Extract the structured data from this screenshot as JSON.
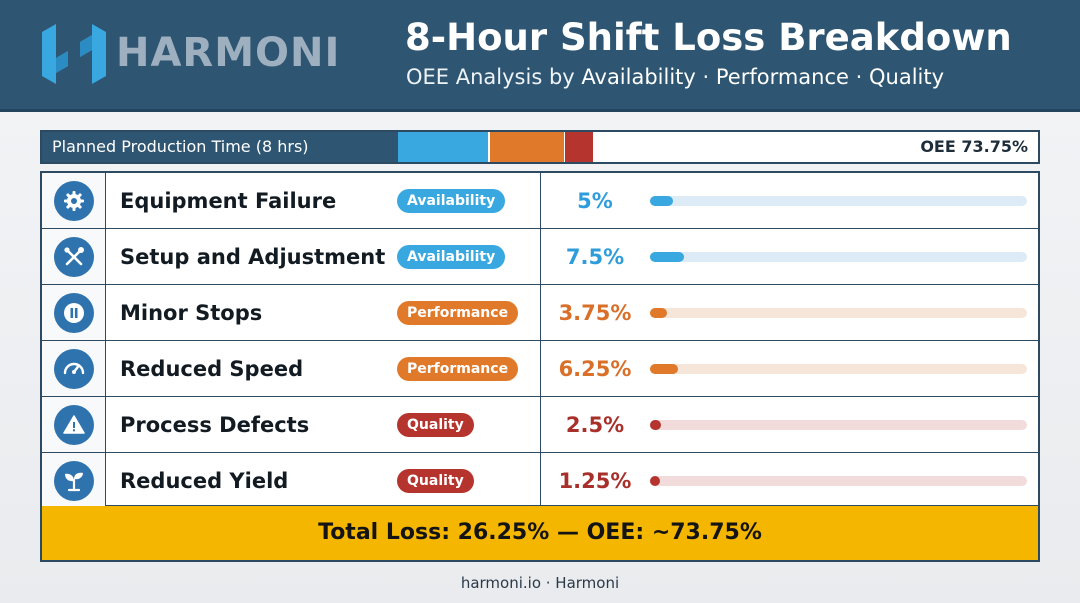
{
  "header": {
    "brand": "HARMONI",
    "title": "8-Hour Shift Loss Breakdown",
    "subtitle_prefix": "OEE Analysis by ",
    "subtitle_parts": [
      "Availability",
      " · ",
      "Performance",
      " · ",
      "Quality"
    ]
  },
  "planned": {
    "label": "Planned Production Time (8 hrs)",
    "oee": "OEE 73.75%"
  },
  "rows": [
    {
      "label": "Equipment Failure",
      "category": "Availability",
      "percent": "5%",
      "value": 5,
      "icon": "gear-icon"
    },
    {
      "label": "Setup and Adjustment",
      "category": "Availability",
      "percent": "7.5%",
      "value": 7.5,
      "icon": "tools-icon"
    },
    {
      "label": "Minor Stops",
      "category": "Performance",
      "percent": "3.75%",
      "value": 3.75,
      "icon": "pause-icon"
    },
    {
      "label": "Reduced Speed",
      "category": "Performance",
      "percent": "6.25%",
      "value": 6.25,
      "icon": "speedometer-icon"
    },
    {
      "label": "Process Defects",
      "category": "Quality",
      "percent": "2.5%",
      "value": 2.5,
      "icon": "warning-icon"
    },
    {
      "label": "Reduced Yield",
      "category": "Quality",
      "percent": "1.25%",
      "value": 1.25,
      "icon": "sprout-icon"
    }
  ],
  "total": "Total Loss: 26.25% — OEE: ~73.75%",
  "footer": "harmoni.io · Harmoni",
  "colors": {
    "availability": "#3aa8e0",
    "performance": "#e07a2a",
    "quality": "#b6342e",
    "header": "#2e5572",
    "total_bar": "#f5b600"
  }
}
